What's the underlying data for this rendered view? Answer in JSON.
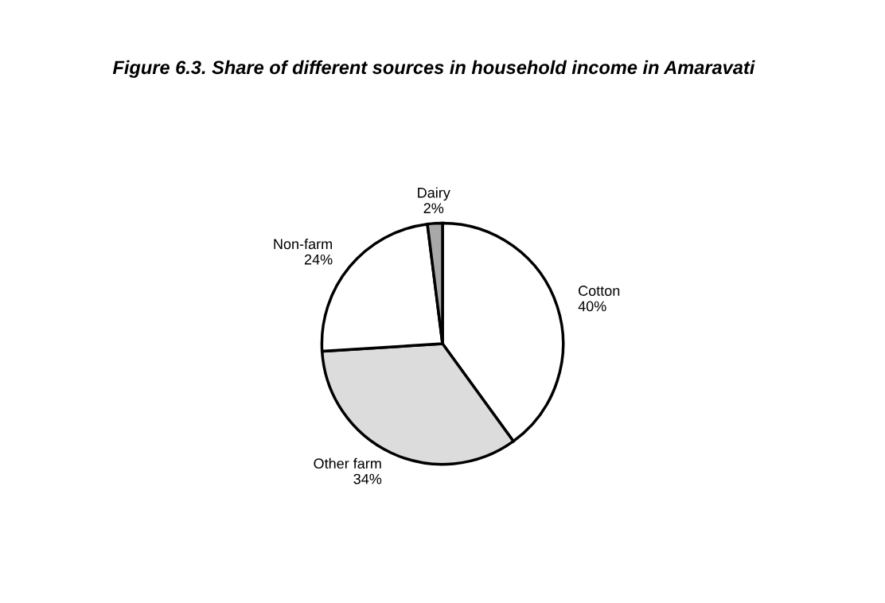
{
  "chart_data": {
    "type": "pie",
    "title": "Figure 6.3. Share of different sources in household income in Amaravati",
    "categories": [
      "Cotton",
      "Other farm",
      "Non-farm",
      "Dairy"
    ],
    "values": [
      40,
      34,
      24,
      2
    ],
    "value_labels": [
      "40%",
      "34%",
      "24%",
      "2%"
    ],
    "colors": [
      "#ffffff",
      "#dcdcdc",
      "#ffffff",
      "#a8a8a8"
    ],
    "legend": false
  }
}
